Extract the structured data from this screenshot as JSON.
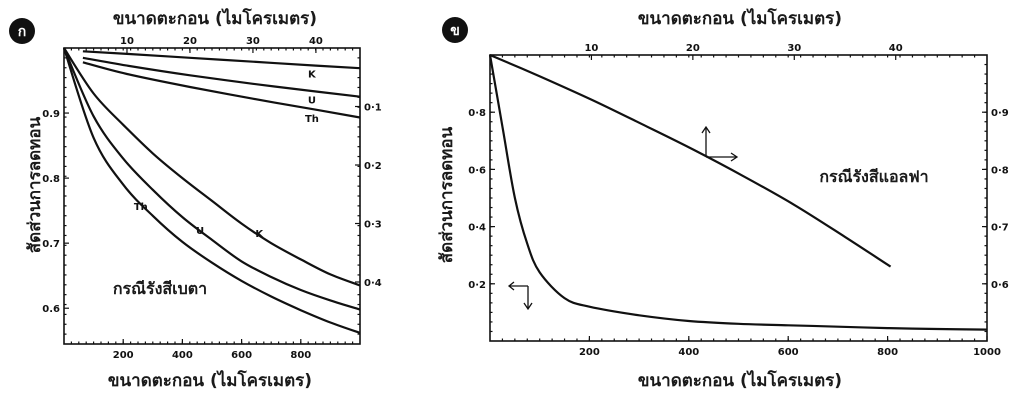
{
  "chart_data": [
    {
      "type": "line",
      "badge": "ก",
      "xlabel_top": "ขนาดตะกอน (ไมโครเมตร)",
      "xlabel_bottom": "ขนาดตะกอน (ไมโครเมตร)",
      "ylabel": "สัดส่วนการลดทอน",
      "annotation": "กรณีรังสีเบตา",
      "x_bottom": {
        "ticks": [
          200,
          400,
          600,
          800
        ],
        "lim": [
          0,
          1000
        ]
      },
      "x_top": {
        "ticks": [
          10,
          20,
          30,
          40
        ],
        "lim": [
          0,
          47
        ]
      },
      "y_left": {
        "ticks": [
          "0.9",
          "0.8",
          "0.7",
          "0.6"
        ],
        "values": [
          0.9,
          0.8,
          0.7,
          0.6
        ],
        "lim": [
          0.545,
          1.0
        ]
      },
      "y_right": {
        "ticks": [
          "0·1",
          "0·2",
          "0·3",
          "0·4"
        ],
        "values": [
          0.1,
          0.2,
          0.3,
          0.4
        ]
      },
      "series": [
        {
          "name": "K",
          "axis": "top",
          "x": [
            3,
            10,
            20,
            30,
            40,
            47
          ],
          "y": [
            0.995,
            0.991,
            0.985,
            0.979,
            0.973,
            0.969
          ]
        },
        {
          "name": "U",
          "axis": "top",
          "x": [
            3,
            10,
            20,
            30,
            40,
            47
          ],
          "y": [
            0.985,
            0.973,
            0.958,
            0.945,
            0.933,
            0.925
          ]
        },
        {
          "name": "Th",
          "axis": "top",
          "x": [
            3,
            10,
            20,
            30,
            40,
            47
          ],
          "y": [
            0.978,
            0.96,
            0.94,
            0.922,
            0.905,
            0.893
          ]
        },
        {
          "name": "K",
          "axis": "bottom",
          "x": [
            0,
            100,
            200,
            300,
            400,
            500,
            600,
            700,
            800,
            900,
            1000
          ],
          "y": [
            1.0,
            0.93,
            0.882,
            0.838,
            0.8,
            0.765,
            0.73,
            0.7,
            0.675,
            0.652,
            0.635
          ]
        },
        {
          "name": "U",
          "axis": "bottom",
          "x": [
            0,
            100,
            200,
            300,
            400,
            500,
            600,
            700,
            800,
            900,
            1000
          ],
          "y": [
            1.0,
            0.895,
            0.83,
            0.782,
            0.74,
            0.705,
            0.672,
            0.648,
            0.628,
            0.612,
            0.598
          ]
        },
        {
          "name": "Th",
          "axis": "bottom",
          "x": [
            0,
            100,
            200,
            300,
            400,
            500,
            600,
            700,
            800,
            900,
            1000
          ],
          "y": [
            1.0,
            0.862,
            0.79,
            0.742,
            0.702,
            0.67,
            0.642,
            0.618,
            0.597,
            0.578,
            0.562
          ]
        }
      ]
    },
    {
      "type": "line",
      "badge": "ข",
      "xlabel_top": "ขนาดตะกอน (ไมโครเมตร)",
      "xlabel_bottom": "ขนาดตะกอน (ไมโครเมตร)",
      "ylabel": "สัดส่วนการลดทอน",
      "annotation": "กรณีรังสีแอลฟา",
      "x_bottom": {
        "ticks": [
          200,
          400,
          600,
          800,
          1000
        ],
        "lim": [
          0,
          1000
        ]
      },
      "x_top": {
        "ticks": [
          10,
          20,
          30,
          40
        ],
        "lim": [
          0,
          49
        ]
      },
      "y_left": {
        "ticks": [
          "0·8",
          "0·6",
          "0·4",
          "0·2"
        ],
        "values": [
          0.8,
          0.6,
          0.4,
          0.2
        ],
        "lim": [
          0.0,
          1.0
        ]
      },
      "y_right": {
        "ticks": [
          "0·9",
          "0·8",
          "0·7",
          "0·6"
        ],
        "values": [
          0.9,
          0.8,
          0.7,
          0.6
        ],
        "lim": [
          0.5,
          1.0
        ]
      },
      "series": [
        {
          "name": "",
          "axis": "bottom",
          "x": [
            0,
            25,
            50,
            75,
            100,
            150,
            200,
            300,
            400,
            500,
            600,
            700,
            800,
            900,
            1000
          ],
          "y": [
            1.0,
            0.75,
            0.5,
            0.34,
            0.24,
            0.15,
            0.12,
            0.09,
            0.07,
            0.06,
            0.055,
            0.05,
            0.045,
            0.042,
            0.04
          ]
        },
        {
          "name": "",
          "axis": "top",
          "x": [
            0,
            5,
            10,
            15,
            20,
            25,
            30,
            35,
            39.5
          ],
          "y": [
            1.0,
            0.962,
            0.922,
            0.879,
            0.835,
            0.788,
            0.738,
            0.682,
            0.63
          ]
        }
      ]
    }
  ]
}
